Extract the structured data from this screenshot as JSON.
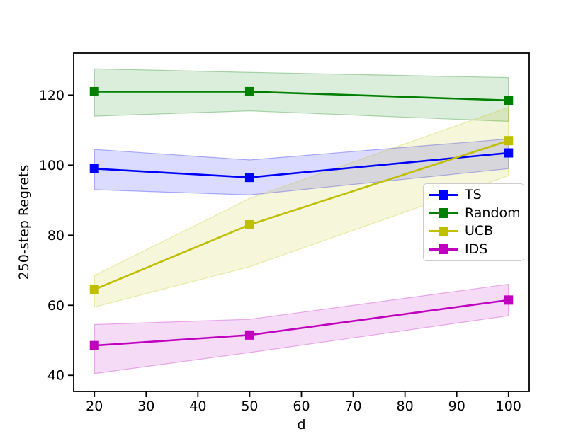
{
  "figure": {
    "background": "#ffffff",
    "frame_color": "#000000"
  },
  "chart_data": {
    "type": "line",
    "title": "",
    "xlabel": "d",
    "ylabel": "250-step Regrets",
    "x": [
      20,
      50,
      100
    ],
    "xticks": [
      20,
      30,
      40,
      50,
      60,
      70,
      80,
      90,
      100
    ],
    "yticks": [
      40,
      60,
      80,
      100,
      120
    ],
    "xlim": [
      16,
      104
    ],
    "ylim": [
      35.4,
      132
    ],
    "grid": false,
    "marker": "square",
    "legend_position": "center right",
    "series": [
      {
        "name": "TS",
        "color": "#0000ff",
        "values": [
          99,
          96.5,
          103.5
        ],
        "band_lower": [
          93,
          91.5,
          99
        ],
        "band_upper": [
          104.5,
          101.5,
          107.5
        ]
      },
      {
        "name": "Random",
        "color": "#008000",
        "values": [
          121,
          121,
          118.5
        ],
        "band_lower": [
          114,
          115.5,
          112.5
        ],
        "band_upper": [
          127.5,
          126.5,
          125
        ]
      },
      {
        "name": "UCB",
        "color": "#bfbf00",
        "values": [
          64.5,
          83,
          107
        ],
        "band_lower": [
          59.5,
          71,
          97
        ],
        "band_upper": [
          68.5,
          90.5,
          116.5
        ]
      },
      {
        "name": "IDS",
        "color": "#bf00bf",
        "values": [
          48.5,
          51.5,
          61.5
        ],
        "band_lower": [
          40.5,
          46.5,
          57
        ],
        "band_upper": [
          54.5,
          56,
          66
        ]
      }
    ]
  }
}
